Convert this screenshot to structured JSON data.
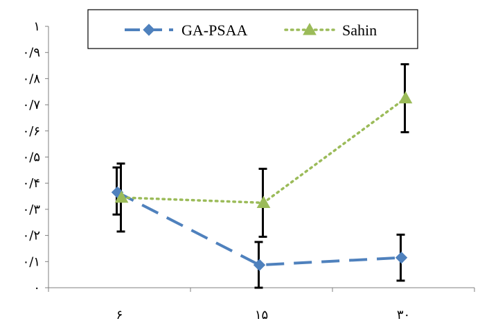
{
  "chart_data": {
    "type": "line",
    "title": "",
    "xlabel": "",
    "ylabel": "",
    "categories": [
      "۶",
      "۱۵",
      "۳۰"
    ],
    "ylim": [
      0,
      1
    ],
    "y_ticks": [
      0,
      0.1,
      0.2,
      0.3,
      0.4,
      0.5,
      0.6,
      0.7,
      0.8,
      0.9,
      1
    ],
    "y_tick_labels": [
      "۰",
      "۰/۱",
      "۰/۲",
      "۰/۳",
      "۰/۴",
      "۰/۵",
      "۰/۶",
      "۰/۷",
      "۰/۸",
      "۰/۹",
      "۱"
    ],
    "grid": false,
    "legend_position": "top",
    "series": [
      {
        "name": "GA-PSAA",
        "values": [
          0.365,
          0.087,
          0.115
        ],
        "error_low": [
          0.28,
          0.0,
          0.027
        ],
        "error_high": [
          0.46,
          0.175,
          0.203
        ],
        "color": "#4F81BD",
        "line_style": "dashed",
        "marker": "diamond"
      },
      {
        "name": "Sahin",
        "values": [
          0.345,
          0.325,
          0.725
        ],
        "error_low": [
          0.215,
          0.195,
          0.595
        ],
        "error_high": [
          0.475,
          0.455,
          0.855
        ],
        "color": "#9BBB59",
        "line_style": "dotted",
        "marker": "triangle"
      }
    ]
  }
}
